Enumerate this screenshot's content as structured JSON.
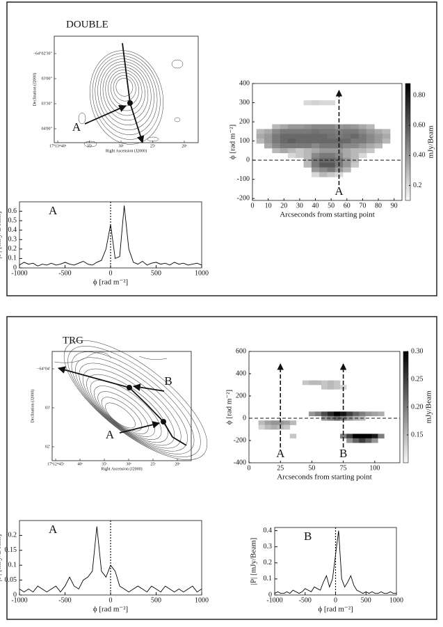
{
  "sections": [
    {
      "title": "DOUBLE"
    },
    {
      "title": "TRG"
    }
  ],
  "chart_data": [
    {
      "type": "contour-map",
      "xlabel": "Right Ascension (J2000)",
      "ylabel": "Declination (J2000)",
      "xtick_labels": [
        "17ʰ13ᵐ40ˢ",
        "35ˢ",
        "30ˢ",
        "25ˢ",
        "20ˢ"
      ],
      "ytick_labels": [
        "−64°02'30\"",
        "03'00\"",
        "03'30\"",
        "04'00\""
      ],
      "annotations": [
        "A"
      ]
    },
    {
      "type": "heatmap",
      "xlabel": "Arcseconds from starting point",
      "ylabel": "ϕ [rad m⁻²]",
      "colorbar_label": "mJy/Beam",
      "xlim": [
        0,
        95
      ],
      "ylim": [
        -210,
        400
      ],
      "xticks": [
        0,
        10,
        20,
        30,
        40,
        50,
        60,
        70,
        80,
        90
      ],
      "yticks": [
        -200,
        -100,
        0,
        100,
        200,
        300,
        400
      ],
      "zlim": [
        0.1,
        0.88
      ],
      "zticks": [
        0.2,
        {
          "value": 0.4,
          "label": "0.40"
        },
        {
          "value": 0.6,
          "label": "0.60"
        },
        {
          "value": 0.8,
          "label": "0.80"
        }
      ],
      "hline": 0,
      "annotations": [
        {
          "label": "A",
          "x": 55
        }
      ],
      "x": [
        5,
        10,
        15,
        20,
        25,
        30,
        35,
        40,
        45,
        50,
        55,
        60,
        65,
        70,
        75,
        80,
        85
      ],
      "y": [
        300,
        175,
        150,
        125,
        100,
        75,
        50,
        25,
        0,
        -25,
        -50,
        -75
      ],
      "z": [
        [
          null,
          null,
          null,
          null,
          null,
          null,
          0.2,
          0.22,
          0.2,
          0.2,
          null,
          null,
          null,
          null,
          null,
          null,
          null
        ],
        [
          null,
          null,
          0.3,
          0.35,
          0.4,
          0.4,
          0.42,
          0.45,
          0.45,
          0.45,
          0.4,
          0.42,
          0.4,
          0.35,
          0.3,
          null,
          null
        ],
        [
          0.3,
          0.35,
          0.45,
          0.5,
          0.5,
          0.5,
          0.5,
          0.52,
          0.5,
          0.5,
          0.48,
          0.5,
          0.5,
          0.45,
          0.4,
          0.35,
          0.3
        ],
        [
          0.35,
          0.4,
          0.5,
          0.55,
          0.55,
          0.55,
          0.55,
          0.55,
          0.55,
          0.52,
          0.5,
          0.52,
          0.55,
          0.5,
          0.45,
          0.4,
          0.35
        ],
        [
          0.3,
          0.4,
          0.5,
          0.55,
          0.58,
          0.55,
          0.55,
          0.55,
          0.55,
          0.55,
          0.55,
          0.55,
          0.5,
          0.5,
          0.45,
          0.4,
          0.3
        ],
        [
          null,
          0.35,
          0.45,
          0.5,
          0.5,
          0.5,
          0.5,
          0.45,
          0.5,
          0.5,
          0.5,
          0.45,
          0.45,
          0.4,
          0.35,
          0.3,
          null
        ],
        [
          null,
          null,
          0.3,
          0.35,
          0.3,
          0.25,
          0.3,
          0.35,
          0.4,
          0.4,
          0.4,
          0.35,
          0.3,
          0.3,
          0.25,
          null,
          null
        ],
        [
          null,
          null,
          null,
          null,
          0.2,
          0.25,
          0.3,
          0.45,
          0.5,
          0.5,
          0.45,
          0.35,
          0.3,
          0.2,
          null,
          null,
          null
        ],
        [
          null,
          null,
          null,
          null,
          null,
          null,
          0.3,
          0.5,
          0.55,
          0.55,
          0.5,
          0.4,
          0.3,
          null,
          null,
          null,
          null
        ],
        [
          null,
          null,
          null,
          null,
          null,
          null,
          0.3,
          0.5,
          0.6,
          0.6,
          0.5,
          0.4,
          0.25,
          null,
          null,
          null,
          null
        ],
        [
          null,
          null,
          null,
          null,
          null,
          null,
          null,
          0.4,
          0.45,
          0.5,
          0.4,
          0.3,
          null,
          null,
          null,
          null,
          null
        ],
        [
          null,
          null,
          null,
          null,
          null,
          null,
          null,
          0.2,
          0.3,
          0.25,
          0.2,
          null,
          null,
          null,
          null,
          null,
          null
        ]
      ]
    },
    {
      "type": "line",
      "xlabel": "ϕ [rad m⁻²]",
      "ylabel": "|P| [mJy/Beam]",
      "annotation": "A",
      "vline": 0,
      "color": "#000000",
      "xlim": [
        -1000,
        1000
      ],
      "xticks": [
        -1000,
        -500,
        0,
        500,
        1000
      ],
      "ylim": [
        0,
        0.7
      ],
      "yticks": [
        0,
        0.1,
        0.2,
        0.3,
        0.4,
        0.5,
        0.6
      ],
      "x": [
        -1000,
        -950,
        -900,
        -850,
        -800,
        -750,
        -700,
        -650,
        -600,
        -550,
        -500,
        -450,
        -400,
        -350,
        -300,
        -250,
        -200,
        -150,
        -100,
        -50,
        0,
        50,
        100,
        150,
        200,
        250,
        300,
        350,
        400,
        450,
        500,
        550,
        600,
        650,
        700,
        750,
        800,
        850,
        900,
        950,
        1000
      ],
      "values": [
        0.03,
        0.06,
        0.04,
        0.05,
        0.02,
        0.04,
        0.03,
        0.05,
        0.03,
        0.04,
        0.06,
        0.04,
        0.03,
        0.05,
        0.07,
        0.04,
        0.03,
        0.06,
        0.08,
        0.2,
        0.46,
        0.1,
        0.12,
        0.66,
        0.2,
        0.06,
        0.04,
        0.07,
        0.03,
        0.05,
        0.06,
        0.04,
        0.05,
        0.03,
        0.06,
        0.04,
        0.05,
        0.03,
        0.04,
        0.05,
        0.03
      ]
    },
    {
      "type": "contour-map",
      "xlabel": "Right Ascension (J2000)",
      "ylabel": "Declination (J2000)",
      "xtick_labels": [
        "17ʰ12ᵐ45ˢ",
        "40ˢ",
        "35ˢ",
        "30ˢ",
        "25ˢ",
        "20ˢ"
      ],
      "ytick_labels": [
        "−64°04'",
        "03'",
        "02'"
      ],
      "annotations": [
        "B",
        "A"
      ]
    },
    {
      "type": "heatmap",
      "xlabel": "Arcseconds from starting point",
      "ylabel": "ϕ [rad m⁻²]",
      "colorbar_label": "mJy/Beam",
      "xlim": [
        0,
        120
      ],
      "ylim": [
        -400,
        600
      ],
      "xticks": [
        0,
        25,
        50,
        75,
        100
      ],
      "yticks": [
        -400,
        -200,
        0,
        200,
        400,
        600
      ],
      "zlim": [
        0.1,
        0.3
      ],
      "zticks": [
        0.15,
        {
          "value": 0.2,
          "label": "0.20"
        },
        0.25,
        {
          "value": 0.3,
          "label": "0.30"
        }
      ],
      "hline": 0,
      "annotations": [
        {
          "label": "A",
          "x": 25
        },
        {
          "label": "B",
          "x": 75
        }
      ],
      "x": [
        10,
        15,
        20,
        25,
        30,
        35,
        40,
        45,
        50,
        55,
        60,
        65,
        70,
        75,
        80,
        85,
        90,
        95,
        100,
        105
      ],
      "y": [
        320,
        280,
        40,
        0,
        -40,
        -80,
        -160,
        -200
      ],
      "z": [
        [
          null,
          null,
          null,
          null,
          null,
          null,
          null,
          0.14,
          0.15,
          0.15,
          0.14,
          0.15,
          0.14,
          null,
          null,
          null,
          null,
          null,
          null,
          null
        ],
        [
          null,
          null,
          null,
          null,
          null,
          null,
          null,
          null,
          null,
          null,
          0.14,
          0.15,
          0.14,
          0.13,
          null,
          null,
          null,
          null,
          null,
          null
        ],
        [
          null,
          null,
          null,
          null,
          null,
          null,
          null,
          null,
          0.18,
          0.2,
          0.24,
          0.27,
          0.3,
          0.28,
          0.25,
          0.22,
          0.2,
          0.18,
          0.17,
          0.16
        ],
        [
          null,
          null,
          null,
          null,
          null,
          null,
          null,
          null,
          null,
          null,
          0.18,
          0.2,
          0.22,
          0.2,
          0.18,
          0.16,
          0.15,
          null,
          null,
          null
        ],
        [
          0.15,
          0.17,
          0.18,
          0.18,
          0.17,
          0.15,
          null,
          null,
          null,
          null,
          null,
          null,
          null,
          null,
          null,
          null,
          null,
          null,
          null,
          null
        ],
        [
          0.13,
          0.15,
          0.16,
          0.15,
          0.14,
          null,
          null,
          null,
          null,
          null,
          null,
          null,
          null,
          null,
          null,
          null,
          null,
          null,
          null,
          null
        ],
        [
          null,
          null,
          null,
          null,
          null,
          0.14,
          null,
          null,
          null,
          null,
          null,
          null,
          null,
          0.2,
          0.25,
          0.3,
          0.3,
          0.3,
          0.28,
          0.2
        ],
        [
          null,
          null,
          null,
          null,
          null,
          null,
          null,
          null,
          null,
          null,
          null,
          null,
          null,
          null,
          0.18,
          0.22,
          0.25,
          0.22,
          0.18,
          null
        ]
      ]
    },
    {
      "type": "line",
      "xlabel": "ϕ [rad m⁻²]",
      "ylabel": "|P| [mJy/Beam]",
      "annotation": "A",
      "vline": 0,
      "color": "#000000",
      "xlim": [
        -1000,
        1000
      ],
      "xticks": [
        -1000,
        -500,
        0,
        500,
        1000
      ],
      "ylim": [
        0,
        0.25
      ],
      "yticks": [
        0,
        0.05,
        0.1,
        0.15,
        0.2
      ],
      "x": [
        -1000,
        -950,
        -900,
        -850,
        -800,
        -750,
        -700,
        -650,
        -600,
        -550,
        -500,
        -450,
        -400,
        -350,
        -300,
        -250,
        -200,
        -150,
        -100,
        -50,
        0,
        50,
        100,
        150,
        200,
        250,
        300,
        350,
        400,
        450,
        500,
        550,
        600,
        650,
        700,
        750,
        800,
        850,
        900,
        950,
        1000
      ],
      "values": [
        0.02,
        0.01,
        0.02,
        0.01,
        0.03,
        0.02,
        0.01,
        0.02,
        0.03,
        0.01,
        0.03,
        0.06,
        0.03,
        0.02,
        0.05,
        0.06,
        0.08,
        0.23,
        0.08,
        0.06,
        0.1,
        0.08,
        0.03,
        0.02,
        0.01,
        0.02,
        0.03,
        0.02,
        0.01,
        0.03,
        0.02,
        0.01,
        0.03,
        0.02,
        0.01,
        0.02,
        0.01,
        0.02,
        0.03,
        0.01,
        0.02
      ]
    },
    {
      "type": "line",
      "xlabel": "ϕ [rad m⁻²]",
      "ylabel": "|P| [mJy/Beam]",
      "annotation": "B",
      "vline": 0,
      "color": "#000000",
      "xlim": [
        -1000,
        1000
      ],
      "xticks": [
        -1000,
        -500,
        0,
        500,
        1000
      ],
      "ylim": [
        0,
        0.42
      ],
      "yticks": [
        0,
        0.1,
        0.2,
        0.3,
        0.4
      ],
      "x": [
        -1000,
        -950,
        -900,
        -850,
        -800,
        -750,
        -700,
        -650,
        -600,
        -550,
        -500,
        -450,
        -400,
        -350,
        -300,
        -250,
        -200,
        -150,
        -100,
        -50,
        0,
        50,
        100,
        150,
        200,
        250,
        300,
        350,
        400,
        450,
        500,
        550,
        600,
        650,
        700,
        750,
        800,
        850,
        900,
        950,
        1000
      ],
      "values": [
        0.01,
        0.02,
        0.01,
        0.01,
        0.02,
        0.01,
        0.03,
        0.02,
        0.01,
        0.02,
        0.04,
        0.03,
        0.02,
        0.05,
        0.04,
        0.03,
        0.08,
        0.12,
        0.05,
        0.1,
        0.25,
        0.4,
        0.1,
        0.05,
        0.08,
        0.12,
        0.06,
        0.03,
        0.02,
        0.01,
        0.02,
        0.01,
        0.02,
        0.01,
        0.01,
        0.02,
        0.01,
        0.01,
        0.02,
        0.01,
        0.01
      ]
    }
  ]
}
